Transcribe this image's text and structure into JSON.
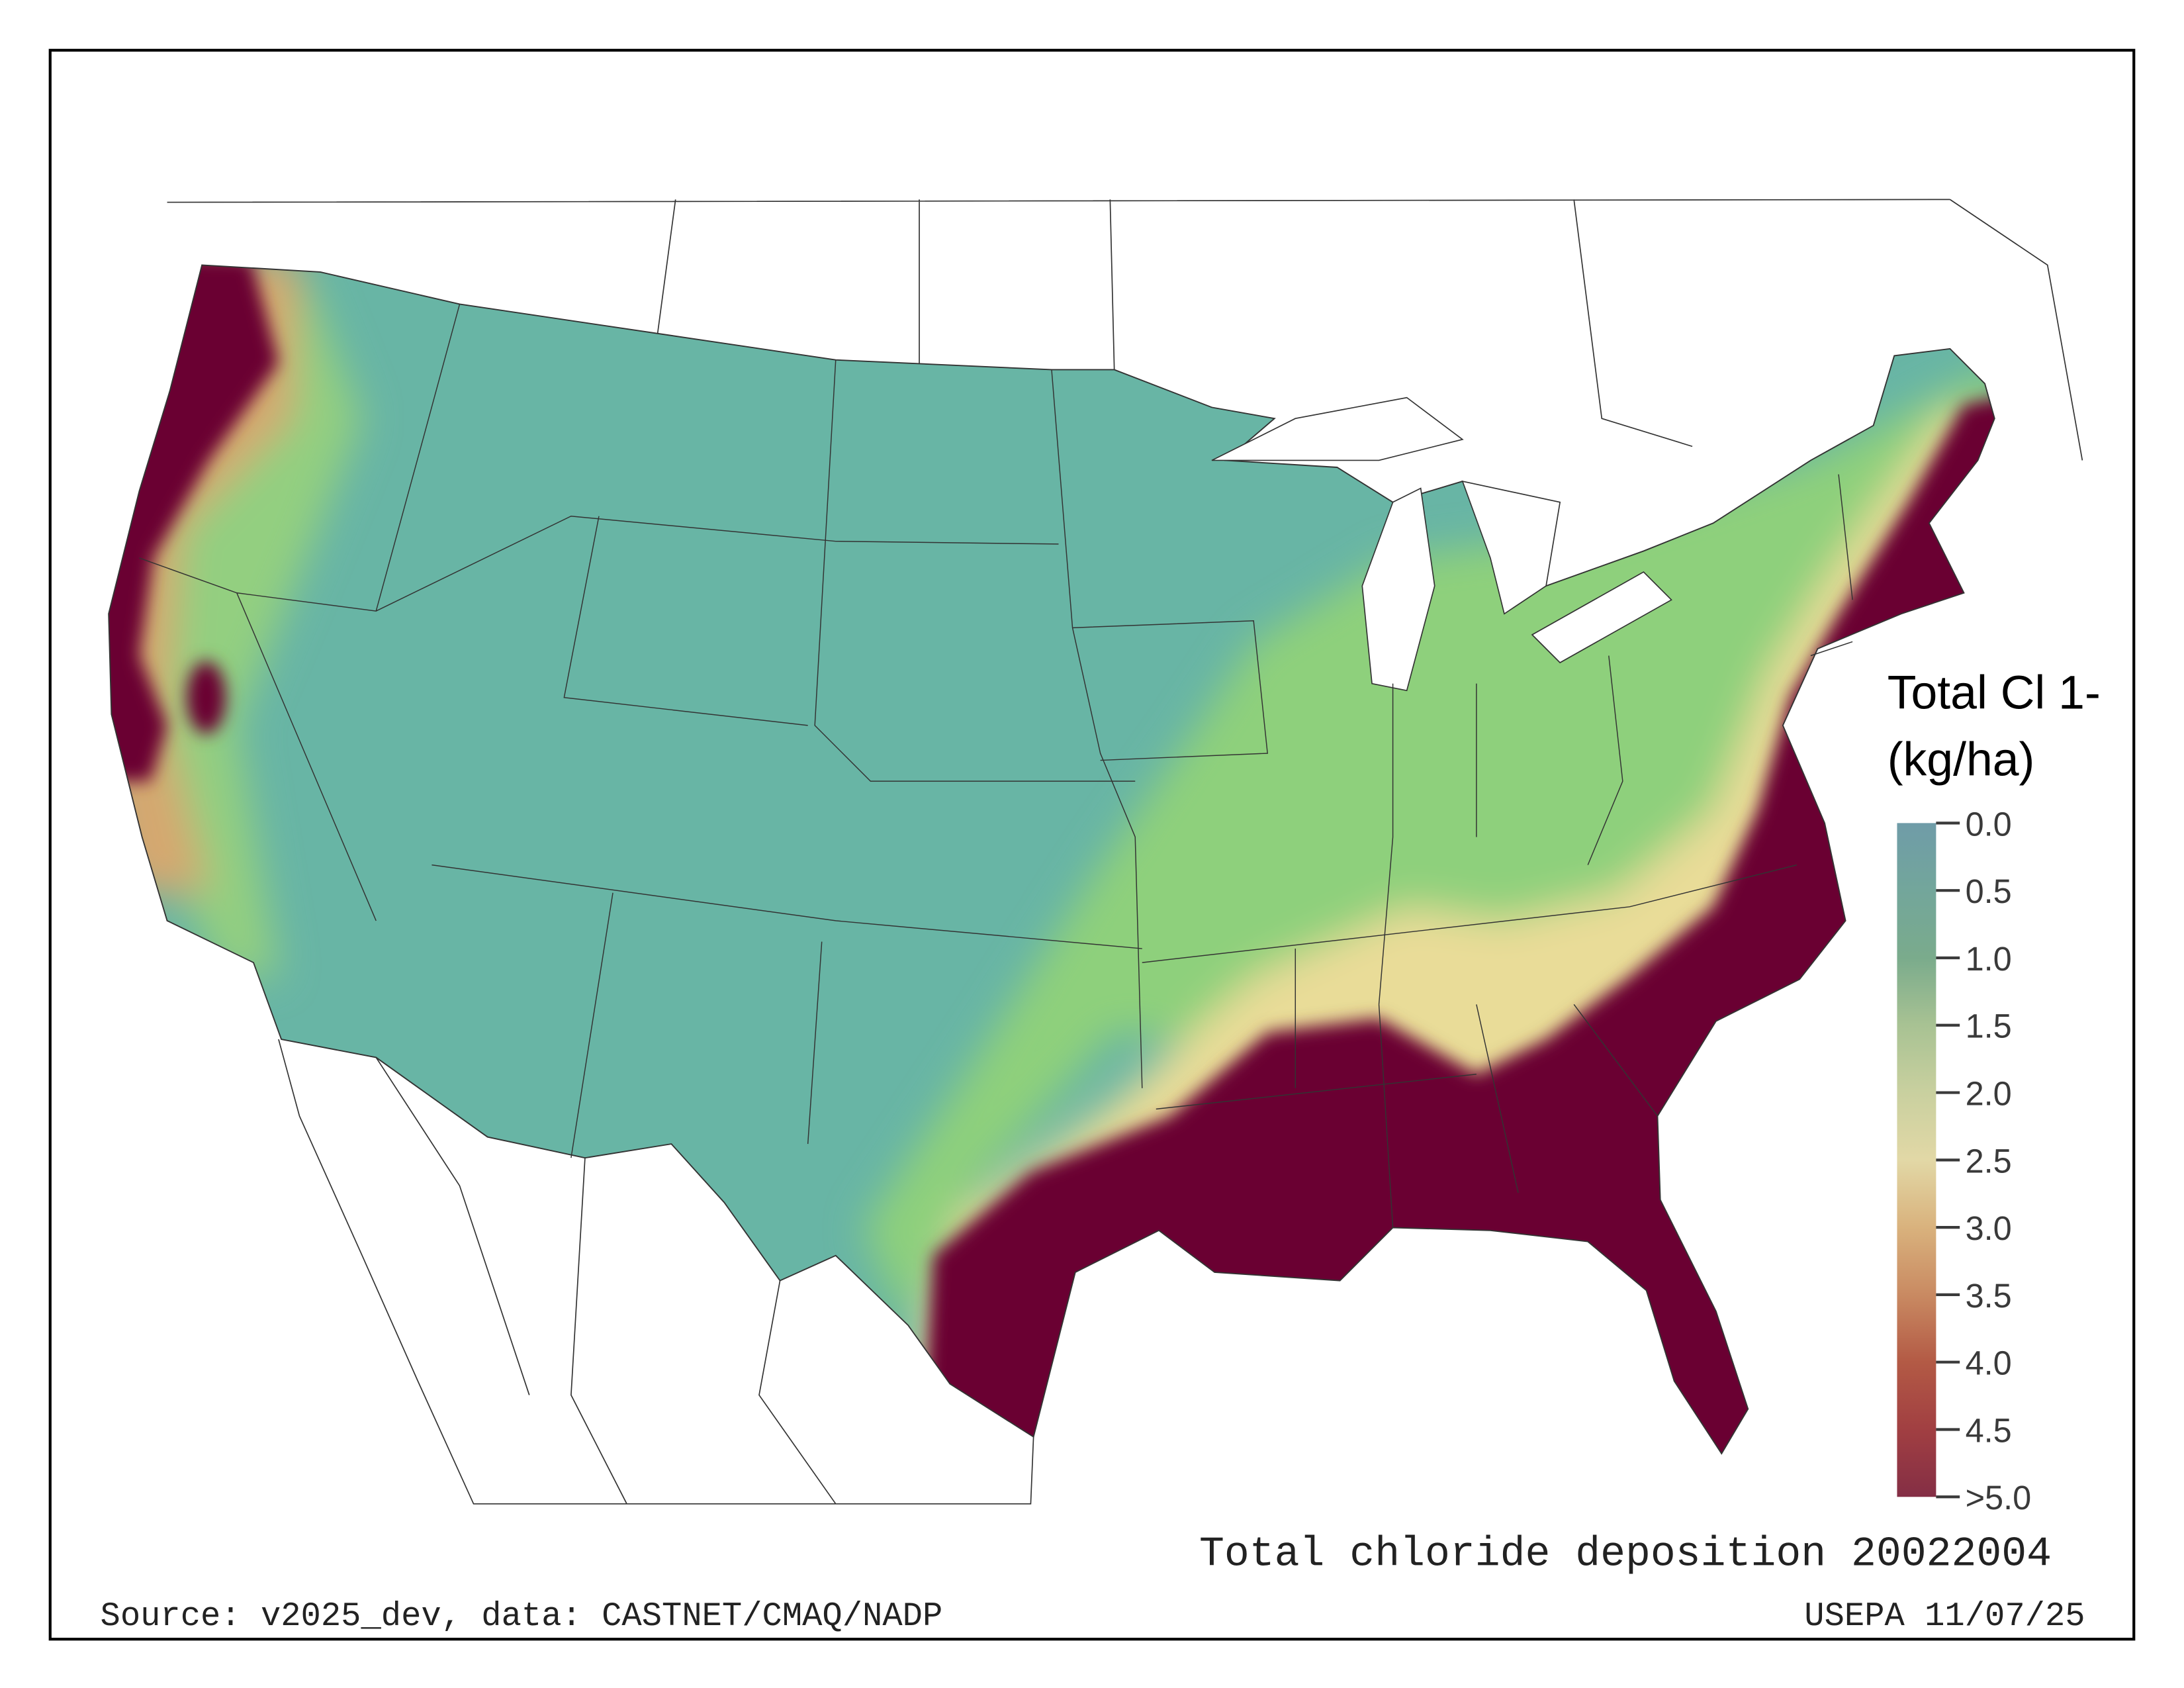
{
  "map": {
    "title": "Total chloride deposition 20022004",
    "source": "Source: v2025_dev, data: CASTNET/CMAQ/NADP",
    "credit": "USEPA 11/07/25"
  },
  "legend": {
    "title_line1": "Total Cl 1-",
    "title_line2": "(kg/ha)",
    "ticks": [
      "0.0",
      "0.5",
      "1.0",
      "1.5",
      "2.0",
      "2.5",
      "3.0",
      "3.5",
      "4.0",
      "4.5",
      ">5.0"
    ],
    "range": [
      0,
      5
    ],
    "colors": [
      "#6f9ca8",
      "#73a69b",
      "#7aab8c",
      "#a8c293",
      "#c9d09f",
      "#e2d8a6",
      "#d9b27d",
      "#c98a62",
      "#b35a45",
      "#a13f42",
      "#842e45"
    ]
  },
  "palette": {
    "low": "#68b5a5",
    "mid": "#8ed07c",
    "pale": "#e9dc98",
    "high": "#6a0033"
  }
}
